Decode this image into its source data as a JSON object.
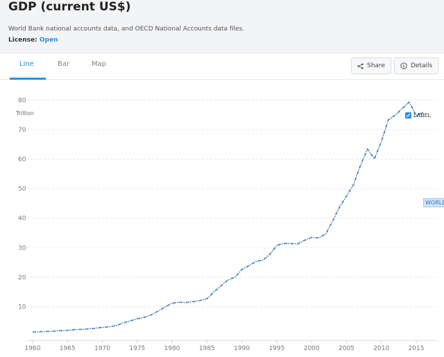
{
  "header": {
    "title": "GDP (current US$)",
    "subtitle": "World Bank national accounts data, and OECD National Accounts data files.",
    "license_label": "License:",
    "license_value": "Open"
  },
  "tabs": [
    {
      "label": "Line",
      "active": true
    },
    {
      "label": "Bar",
      "active": false
    },
    {
      "label": "Map",
      "active": false
    }
  ],
  "actions": {
    "share_label": "Share",
    "details_label": "Details"
  },
  "label_toggle": {
    "label": "LABEL",
    "checked": true
  },
  "colors": {
    "accent": "#2a8de0",
    "line": "#3b78b4"
  },
  "chart_data": {
    "type": "line",
    "title": "",
    "ylabel": "Trillion",
    "xlabel": "",
    "xlim": [
      1960,
      2017
    ],
    "ylim": [
      0,
      85
    ],
    "x_ticks": [
      1960,
      1965,
      1970,
      1975,
      1980,
      1985,
      1990,
      1995,
      2000,
      2005,
      2010,
      2015
    ],
    "y_ticks": [
      10,
      20,
      30,
      40,
      50,
      60,
      70,
      80
    ],
    "grid": true,
    "series": [
      {
        "name": "WORLD",
        "x": [
          1960,
          1961,
          1962,
          1963,
          1964,
          1965,
          1966,
          1967,
          1968,
          1969,
          1970,
          1971,
          1972,
          1973,
          1974,
          1975,
          1976,
          1977,
          1978,
          1979,
          1980,
          1981,
          1982,
          1983,
          1984,
          1985,
          1986,
          1987,
          1988,
          1989,
          1990,
          1991,
          1992,
          1993,
          1994,
          1995,
          1996,
          1997,
          1998,
          1999,
          2000,
          2001,
          2002,
          2003,
          2004,
          2005,
          2006,
          2007,
          2008,
          2009,
          2010,
          2011,
          2012,
          2013,
          2014,
          2015,
          2016
        ],
        "values": [
          1.4,
          1.5,
          1.6,
          1.7,
          1.9,
          2.0,
          2.2,
          2.3,
          2.5,
          2.7,
          3.0,
          3.2,
          3.6,
          4.5,
          5.2,
          5.9,
          6.4,
          7.2,
          8.5,
          9.9,
          11.2,
          11.5,
          11.4,
          11.7,
          12.1,
          12.7,
          15.0,
          17.1,
          19.0,
          20.0,
          22.6,
          23.9,
          25.3,
          25.8,
          27.7,
          30.8,
          31.4,
          31.4,
          31.3,
          32.5,
          33.5,
          33.3,
          34.6,
          38.9,
          43.8,
          47.4,
          51.4,
          57.9,
          63.4,
          60.1,
          66.0,
          73.3,
          74.9,
          77.2,
          79.3,
          74.8,
          75.9
        ]
      }
    ]
  }
}
